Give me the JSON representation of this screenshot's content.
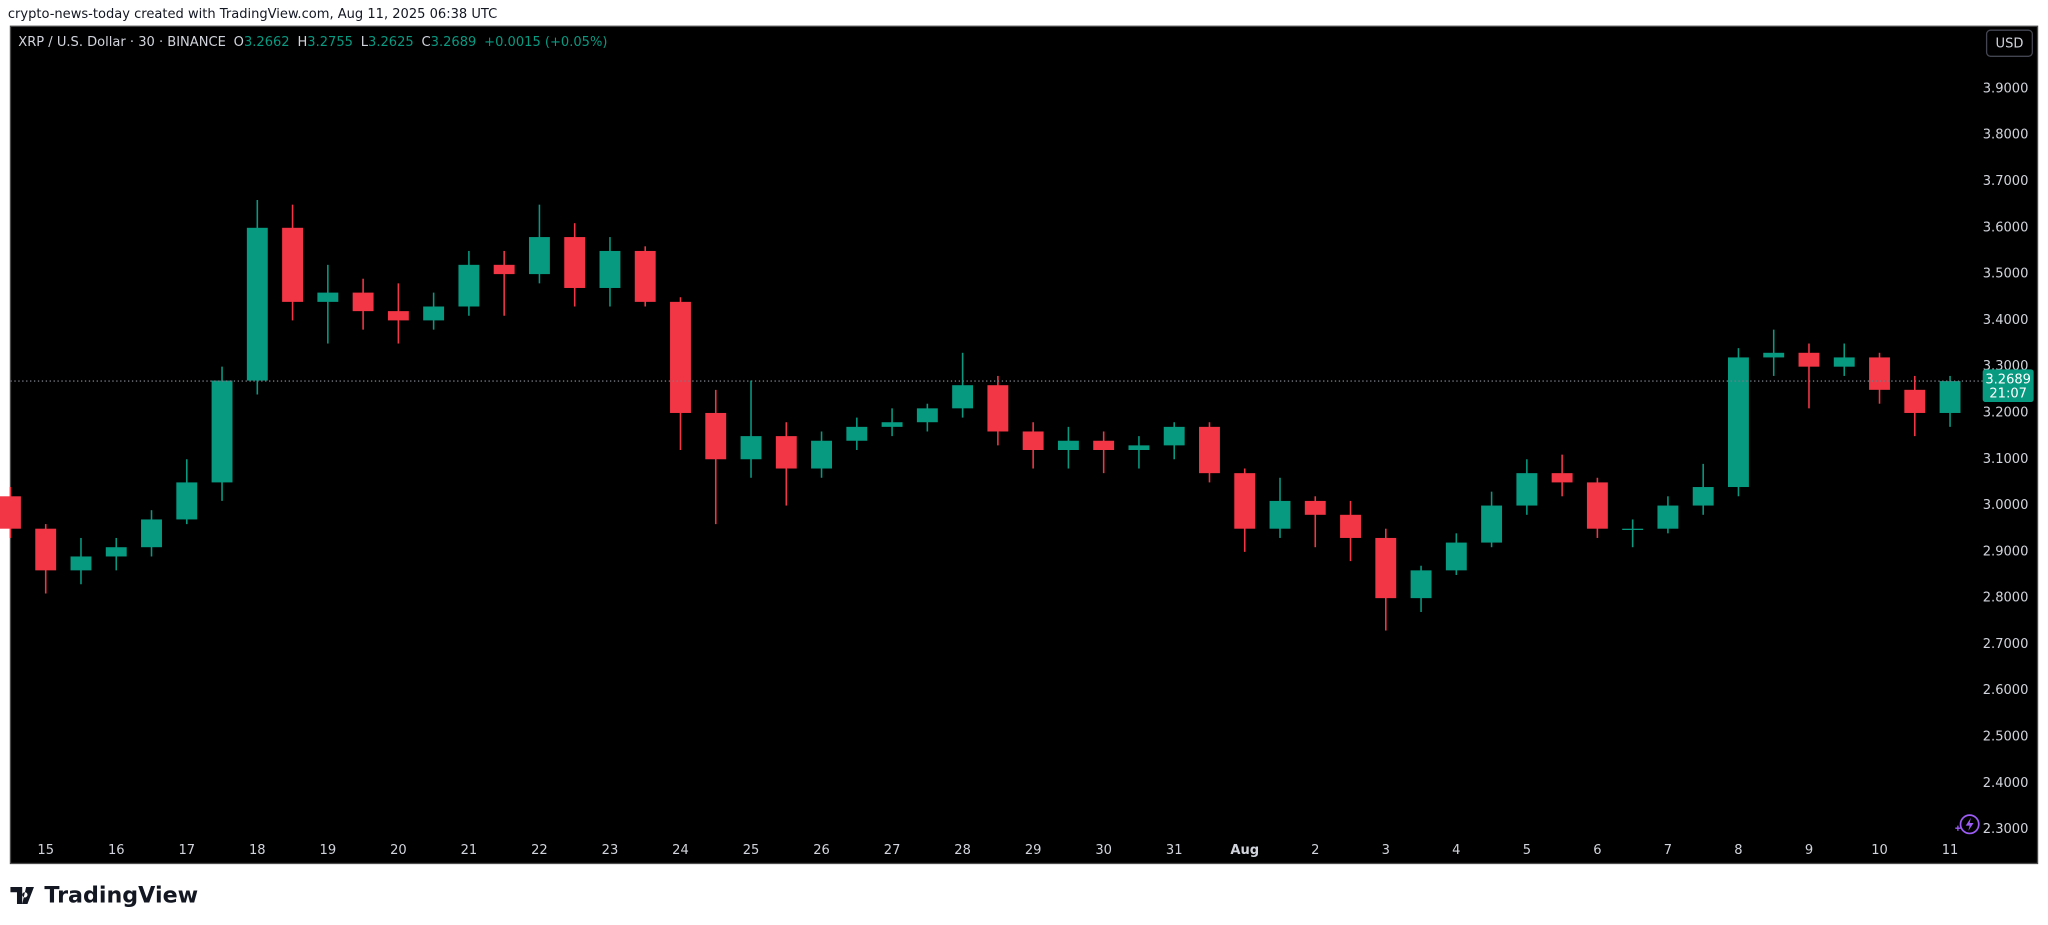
{
  "attribution": "crypto-news-today created with TradingView.com, Aug 11, 2025 06:38 UTC",
  "logo": "TradingView",
  "currency_button": "USD",
  "chart_data": {
    "type": "candlestick",
    "title": "XRP / U.S. Dollar · 30 · BINANCE",
    "header": {
      "open": {
        "label": "O",
        "value": 3.2662
      },
      "high": {
        "label": "H",
        "value": 3.2755
      },
      "low": {
        "label": "L",
        "value": 3.2625
      },
      "close": {
        "label": "C",
        "value": 3.2689
      },
      "change": "+0.0015 (+0.05%)"
    },
    "last_price": 3.2689,
    "countdown": "21:07",
    "up_color": "#089981",
    "down_color": "#f23645",
    "grid": false,
    "categories": [
      null,
      "15",
      null,
      "16",
      null,
      "17",
      null,
      "18",
      null,
      "19",
      null,
      "20",
      null,
      "21",
      null,
      "22",
      null,
      "23",
      null,
      "24",
      null,
      "25",
      null,
      "26",
      null,
      "27",
      null,
      "28",
      null,
      "29",
      null,
      "30",
      null,
      "31",
      null,
      "Aug",
      null,
      "2",
      null,
      "3",
      null,
      "4",
      null,
      "5",
      null,
      "6",
      null,
      "7",
      null,
      "8",
      null,
      "9",
      null,
      "10",
      null,
      "11"
    ],
    "open": [
      3.02,
      2.95,
      2.86,
      2.89,
      2.91,
      2.97,
      3.05,
      3.27,
      3.6,
      3.44,
      3.46,
      3.42,
      3.4,
      3.43,
      3.52,
      3.5,
      3.58,
      3.47,
      3.55,
      3.44,
      3.2,
      3.1,
      3.15,
      3.08,
      3.14,
      3.17,
      3.18,
      3.21,
      3.26,
      3.16,
      3.12,
      3.14,
      3.12,
      3.13,
      3.17,
      3.07,
      2.95,
      3.01,
      2.98,
      2.93,
      2.8,
      2.86,
      2.92,
      3.0,
      3.07,
      3.05,
      2.95,
      2.95,
      3.0,
      3.04,
      3.32,
      3.33,
      3.3,
      3.32,
      3.25,
      3.2
    ],
    "high": [
      3.04,
      2.96,
      2.93,
      2.93,
      2.99,
      3.1,
      3.3,
      3.66,
      3.65,
      3.52,
      3.49,
      3.48,
      3.46,
      3.55,
      3.55,
      3.65,
      3.61,
      3.58,
      3.56,
      3.45,
      3.25,
      3.27,
      3.18,
      3.16,
      3.19,
      3.21,
      3.22,
      3.33,
      3.28,
      3.18,
      3.17,
      3.16,
      3.15,
      3.18,
      3.18,
      3.08,
      3.06,
      3.02,
      3.01,
      2.95,
      2.87,
      2.94,
      3.03,
      3.1,
      3.11,
      3.06,
      2.97,
      3.02,
      3.09,
      3.34,
      3.38,
      3.35,
      3.35,
      3.33,
      3.28,
      3.28
    ],
    "low": [
      2.93,
      2.81,
      2.83,
      2.86,
      2.89,
      2.96,
      3.01,
      3.24,
      3.4,
      3.35,
      3.38,
      3.35,
      3.38,
      3.41,
      3.41,
      3.48,
      3.43,
      3.43,
      3.43,
      3.12,
      2.96,
      3.06,
      3.0,
      3.06,
      3.12,
      3.15,
      3.16,
      3.19,
      3.13,
      3.08,
      3.08,
      3.07,
      3.08,
      3.1,
      3.05,
      2.9,
      2.93,
      2.91,
      2.88,
      2.73,
      2.77,
      2.85,
      2.91,
      2.98,
      3.02,
      2.93,
      2.91,
      2.94,
      2.98,
      3.02,
      3.28,
      3.21,
      3.28,
      3.22,
      3.15,
      3.17
    ],
    "close": [
      2.95,
      2.86,
      2.89,
      2.91,
      2.97,
      3.05,
      3.27,
      3.6,
      3.44,
      3.46,
      3.42,
      3.4,
      3.43,
      3.52,
      3.5,
      3.58,
      3.47,
      3.55,
      3.44,
      3.2,
      3.1,
      3.15,
      3.08,
      3.14,
      3.17,
      3.18,
      3.21,
      3.26,
      3.16,
      3.12,
      3.14,
      3.12,
      3.13,
      3.17,
      3.07,
      2.95,
      3.01,
      2.98,
      2.93,
      2.8,
      2.86,
      2.92,
      3.0,
      3.07,
      3.05,
      2.95,
      2.95,
      3.0,
      3.04,
      3.32,
      3.33,
      3.3,
      3.32,
      3.25,
      3.2,
      3.2689
    ],
    "ylim": [
      2.2296,
      4.0354
    ],
    "yticks": [
      {
        "value": 2.3,
        "label": "2.3000"
      },
      {
        "value": 2.4,
        "label": "2.4000"
      },
      {
        "value": 2.5,
        "label": "2.5000"
      },
      {
        "value": 2.6,
        "label": "2.6000"
      },
      {
        "value": 2.7,
        "label": "2.7000"
      },
      {
        "value": 2.8,
        "label": "2.8000"
      },
      {
        "value": 2.9,
        "label": "2.9000"
      },
      {
        "value": 3.0,
        "label": "3.0000"
      },
      {
        "value": 3.1,
        "label": "3.1000"
      },
      {
        "value": 3.2,
        "label": "3.2000"
      },
      {
        "value": 3.3,
        "label": "3.3000"
      },
      {
        "value": 3.4,
        "label": "3.4000"
      },
      {
        "value": 3.5,
        "label": "3.5000"
      },
      {
        "value": 3.6,
        "label": "3.6000"
      },
      {
        "value": 3.7,
        "label": "3.7000"
      },
      {
        "value": 3.8,
        "label": "3.8000"
      },
      {
        "value": 3.9,
        "label": "3.9000"
      }
    ]
  }
}
